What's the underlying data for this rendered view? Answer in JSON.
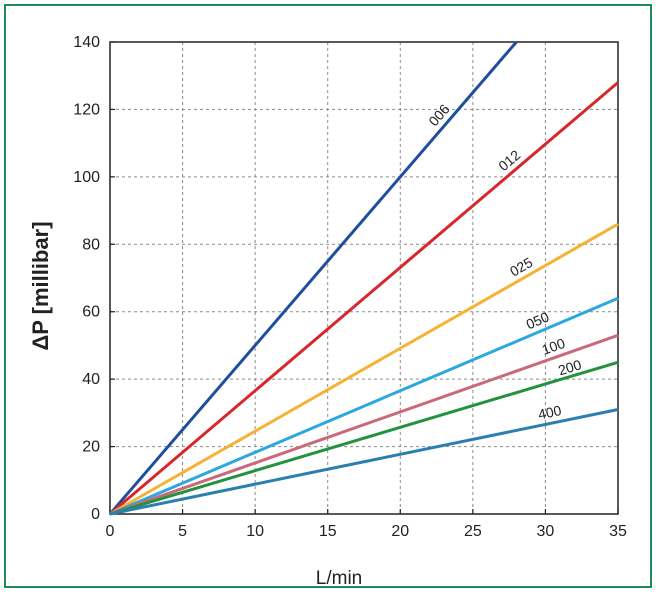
{
  "chart_data": {
    "type": "line",
    "xlabel": "L/min",
    "ylabel": "ΔP [millibar]",
    "xlim": [
      0,
      35
    ],
    "ylim": [
      0,
      140
    ],
    "xticks": [
      0,
      5,
      10,
      15,
      20,
      25,
      30,
      35
    ],
    "yticks": [
      0,
      20,
      40,
      60,
      80,
      100,
      120,
      140
    ],
    "grid": true,
    "series": [
      {
        "name": "006",
        "color": "#1f4e9e",
        "x": [
          0,
          28
        ],
        "y": [
          0,
          140
        ]
      },
      {
        "name": "012",
        "color": "#d9262c",
        "x": [
          0,
          35
        ],
        "y": [
          0,
          128
        ]
      },
      {
        "name": "025",
        "color": "#f5b335",
        "x": [
          0,
          35
        ],
        "y": [
          0,
          86
        ]
      },
      {
        "name": "050",
        "color": "#2ba8e0",
        "x": [
          0,
          35
        ],
        "y": [
          0,
          64
        ]
      },
      {
        "name": "100",
        "color": "#c9697a",
        "x": [
          0,
          35
        ],
        "y": [
          0,
          53
        ]
      },
      {
        "name": "200",
        "color": "#22923e",
        "x": [
          0,
          35
        ],
        "y": [
          0,
          45
        ]
      },
      {
        "name": "400",
        "color": "#2a7faf",
        "x": [
          0,
          35
        ],
        "y": [
          0,
          31
        ]
      }
    ]
  }
}
